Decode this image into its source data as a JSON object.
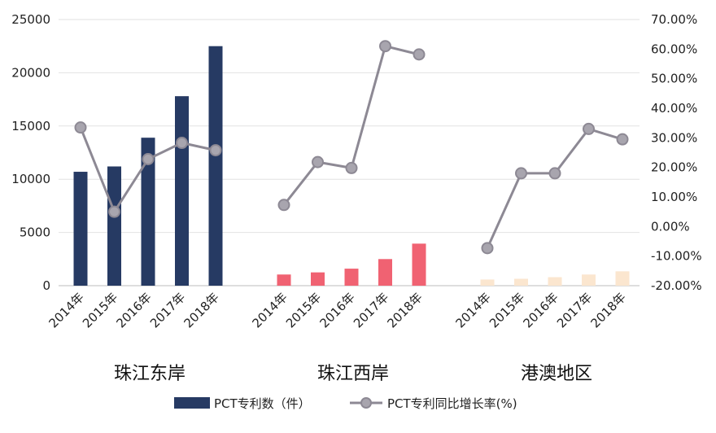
{
  "chart_data": {
    "type": "bar+line",
    "groups": [
      "珠江东岸",
      "珠江西岸",
      "港澳地区"
    ],
    "categories": [
      "2014年",
      "2015年",
      "2016年",
      "2017年",
      "2018年"
    ],
    "y_left": {
      "ylim": [
        0,
        25000
      ],
      "ticks": [
        "0",
        "5000",
        "10000",
        "15000",
        "20000",
        "25000"
      ]
    },
    "y_right": {
      "ylim": [
        -20,
        70
      ],
      "ticks": [
        "-20.00%",
        "-10.00%",
        "0.00%",
        "10.00%",
        "20.00%",
        "30.00%",
        "40.00%",
        "50.00%",
        "60.00%",
        "70.00%"
      ]
    },
    "series": [
      {
        "name": "PCT专利数（件）",
        "kind": "bar",
        "axis": "left",
        "values": [
          [
            10700,
            11200,
            13900,
            17800,
            22500
          ],
          [
            1050,
            1250,
            1600,
            2500,
            3950
          ],
          [
            580,
            650,
            800,
            1050,
            1350
          ]
        ],
        "colors": [
          "#263a63",
          "#f06272",
          "#fbe6cf"
        ]
      },
      {
        "name": "PCT专利同比增长率(%)",
        "kind": "line",
        "axis": "right",
        "color": "#8d8994",
        "values": [
          [
            33.5,
            5.0,
            22.8,
            28.3,
            25.8
          ],
          [
            7.3,
            21.8,
            19.8,
            61.0,
            58.2
          ],
          [
            -7.3,
            18.0,
            18.0,
            33.0,
            29.5
          ]
        ]
      }
    ],
    "grid": true,
    "legend": "bottom"
  }
}
